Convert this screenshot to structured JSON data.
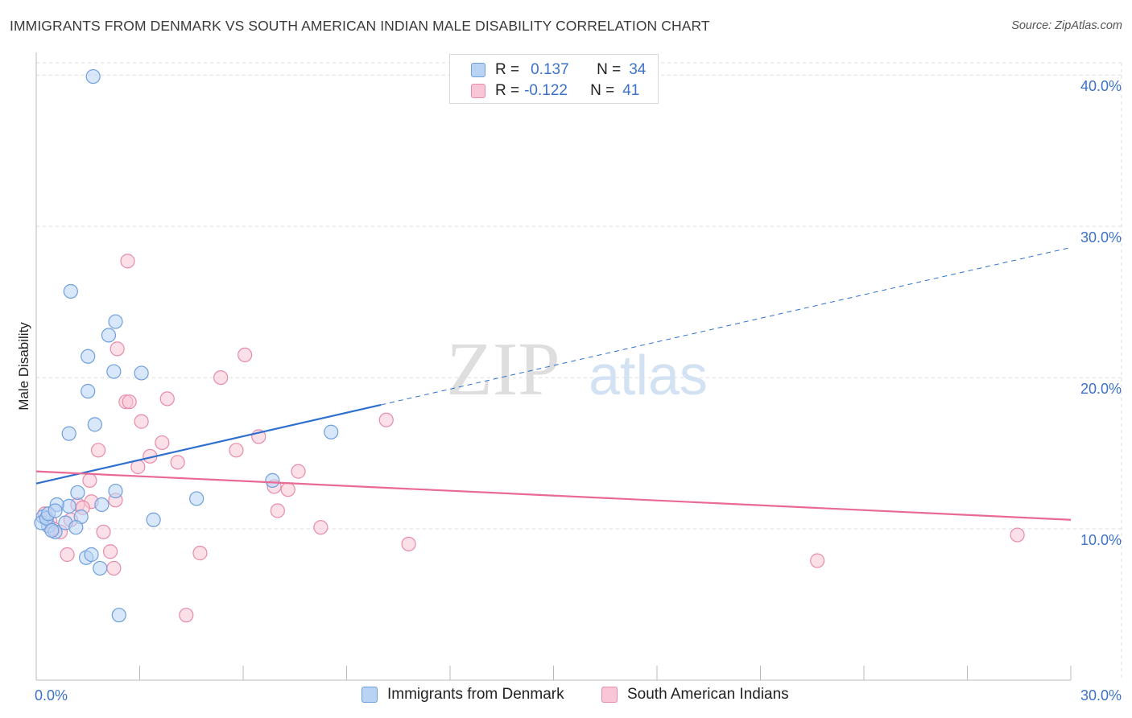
{
  "title": "IMMIGRANTS FROM DENMARK VS SOUTH AMERICAN INDIAN MALE DISABILITY CORRELATION CHART",
  "source": "Source: ZipAtlas.com",
  "watermark": {
    "zip": "ZIP",
    "atlas": "atlas"
  },
  "legend": {
    "series1": {
      "r_label": "R =",
      "r_value": "0.137",
      "n_label": "N =",
      "n_value": "34"
    },
    "series2": {
      "r_label": "R =",
      "r_value": "-0.122",
      "n_label": "N =",
      "n_value": "41"
    }
  },
  "colors": {
    "blue_fill": "#b8d3f4",
    "blue_stroke": "#6f9fdd",
    "blue_line": "#2e6fd0",
    "pink_fill": "#f8c6d6",
    "pink_stroke": "#e88aaa",
    "pink_line": "#e86a95",
    "grid": "#dcdcdc",
    "tick_text": "#3d72c9"
  },
  "chart_data": {
    "type": "scatter",
    "title": "IMMIGRANTS FROM DENMARK VS SOUTH AMERICAN INDIAN MALE DISABILITY CORRELATION CHART",
    "xlabel": "",
    "ylabel": "Male Disability",
    "xlim": [
      0,
      30
    ],
    "ylim": [
      0,
      41.5
    ],
    "x_tick_labels": [
      "0.0%",
      "30.0%"
    ],
    "y_ticks": [
      10,
      20,
      30,
      40
    ],
    "y_tick_labels": [
      "10.0%",
      "20.0%",
      "30.0%",
      "40.0%"
    ],
    "series": [
      {
        "name": "Immigrants from Denmark",
        "r": 0.137,
        "n": 34,
        "trend": {
          "x0": 0,
          "y0": 13.0,
          "x1": 10,
          "y1": 18.2,
          "dash_to_x": 30,
          "dash_to_y": 28.6
        },
        "x": [
          1.65,
          1.0,
          1.5,
          2.3,
          2.1,
          3.05,
          1.5,
          2.25,
          1.7,
          0.35,
          0.55,
          0.85,
          0.95,
          1.2,
          1.3,
          2.3,
          0.95,
          0.6,
          0.2,
          0.15,
          0.3,
          0.35,
          0.55,
          0.45,
          1.15,
          1.45,
          1.6,
          1.85,
          1.9,
          2.4,
          3.4,
          4.65,
          6.85,
          8.55
        ],
        "y": [
          39.9,
          25.7,
          21.4,
          23.7,
          22.8,
          20.3,
          19.1,
          20.4,
          16.9,
          10.2,
          9.8,
          10.4,
          11.5,
          12.4,
          10.8,
          12.5,
          16.3,
          11.6,
          10.8,
          10.4,
          10.7,
          11.0,
          11.2,
          9.9,
          10.1,
          8.1,
          8.3,
          7.4,
          11.6,
          4.3,
          10.6,
          12.0,
          13.2,
          16.4
        ]
      },
      {
        "name": "South American Indians",
        "r": -0.122,
        "n": 41,
        "trend": {
          "x0": 0,
          "y0": 13.8,
          "x1": 30,
          "y1": 10.6
        },
        "x": [
          2.65,
          2.35,
          6.05,
          5.35,
          6.45,
          2.6,
          3.8,
          1.8,
          2.7,
          3.3,
          3.65,
          2.95,
          3.05,
          4.1,
          5.8,
          7.3,
          7.6,
          10.15,
          1.55,
          7.0,
          6.9,
          1.6,
          0.25,
          0.3,
          0.4,
          0.5,
          0.7,
          0.9,
          1.0,
          1.2,
          1.35,
          1.95,
          2.15,
          2.25,
          2.3,
          4.75,
          4.35,
          8.25,
          10.8,
          22.65,
          28.45
        ],
        "y": [
          27.7,
          21.9,
          21.5,
          20.0,
          16.1,
          18.4,
          18.6,
          15.2,
          18.4,
          14.8,
          15.7,
          14.1,
          17.1,
          14.4,
          15.2,
          12.6,
          13.8,
          17.2,
          13.2,
          11.2,
          12.8,
          11.8,
          11.0,
          10.7,
          10.5,
          10.0,
          9.8,
          8.3,
          10.6,
          11.6,
          11.4,
          9.8,
          8.5,
          7.4,
          11.9,
          8.4,
          4.3,
          10.1,
          9.0,
          7.9,
          9.6
        ]
      }
    ],
    "legend": [
      "Immigrants from Denmark",
      "South American Indians"
    ]
  }
}
